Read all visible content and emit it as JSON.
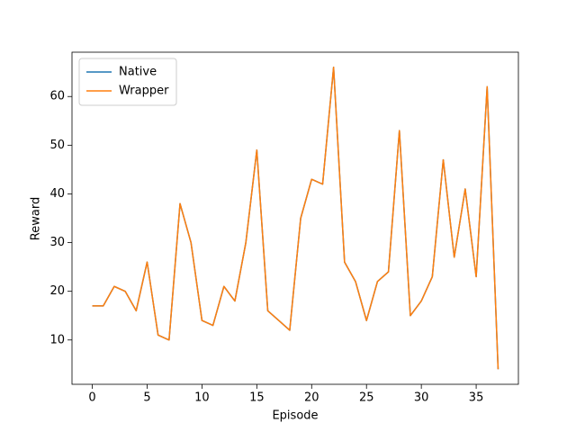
{
  "chart_data": {
    "type": "line",
    "xlabel": "Episode",
    "ylabel": "Reward",
    "x": [
      0,
      1,
      2,
      3,
      4,
      5,
      6,
      7,
      8,
      9,
      10,
      11,
      12,
      13,
      14,
      15,
      16,
      17,
      18,
      19,
      20,
      21,
      22,
      23,
      24,
      25,
      26,
      27,
      28,
      29,
      30,
      31,
      32,
      33,
      34,
      35,
      36,
      37
    ],
    "series": [
      {
        "name": "Native",
        "color": "#1f77b4",
        "values": [
          17,
          17,
          21,
          20,
          16,
          26,
          11,
          10,
          38,
          30,
          14,
          13,
          21,
          18,
          30,
          49,
          16,
          14,
          12,
          35,
          43,
          42,
          66,
          26,
          22,
          14,
          22,
          24,
          53,
          15,
          18,
          23,
          47,
          27,
          41,
          23,
          62,
          4
        ]
      },
      {
        "name": "Wrapper",
        "color": "#ff7f0e",
        "values": [
          17,
          17,
          21,
          20,
          16,
          26,
          11,
          10,
          38,
          30,
          14,
          13,
          21,
          18,
          30,
          49,
          16,
          14,
          12,
          35,
          43,
          42,
          66,
          26,
          22,
          14,
          22,
          24,
          53,
          15,
          18,
          23,
          47,
          27,
          41,
          23,
          62,
          4
        ]
      }
    ],
    "xlim": [
      -1.85,
      38.85
    ],
    "xticks": [
      0,
      5,
      10,
      15,
      20,
      25,
      30,
      35
    ],
    "ylim": [
      0.9,
      69.1
    ],
    "yticks": [
      10,
      20,
      30,
      40,
      50,
      60
    ],
    "legend": "upper left"
  }
}
